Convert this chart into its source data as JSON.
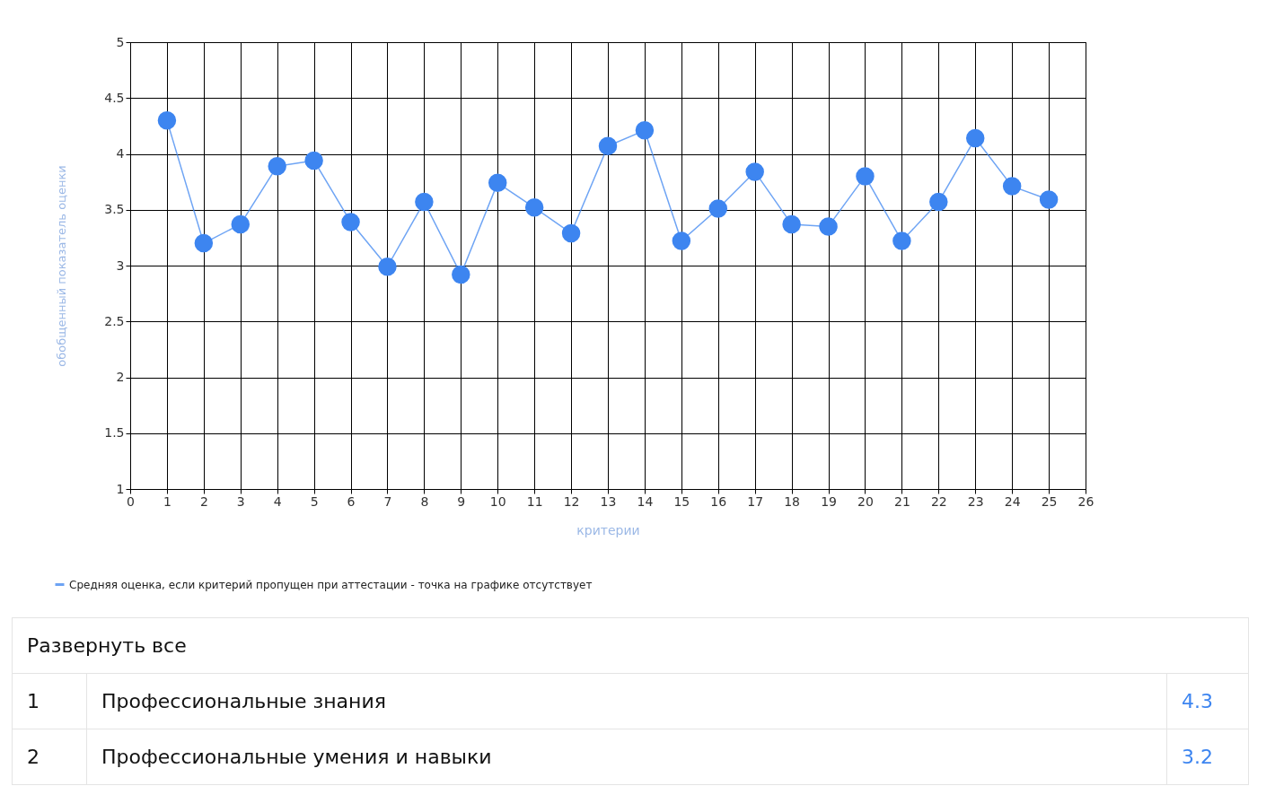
{
  "chart_data": {
    "type": "line",
    "xlabel": "критерии",
    "ylabel": "обобщенный показатель оценки",
    "x": [
      1,
      2,
      3,
      4,
      5,
      6,
      7,
      8,
      9,
      10,
      11,
      12,
      13,
      14,
      15,
      16,
      17,
      18,
      19,
      20,
      21,
      22,
      23,
      24,
      25
    ],
    "series": [
      {
        "name": "Средняя оценка, если критерий пропущен при аттестации - точка на графике отсутствует",
        "color": "#3d85f0",
        "values": [
          4.3,
          3.2,
          3.37,
          3.89,
          3.94,
          3.39,
          2.99,
          3.57,
          2.92,
          3.74,
          3.52,
          3.29,
          4.07,
          4.21,
          3.22,
          3.51,
          3.84,
          3.37,
          3.35,
          3.8,
          3.22,
          3.57,
          4.14,
          3.71,
          3.59
        ]
      }
    ],
    "xlim": [
      0,
      26
    ],
    "xticks": [
      0,
      1,
      2,
      3,
      4,
      5,
      6,
      7,
      8,
      9,
      10,
      11,
      12,
      13,
      14,
      15,
      16,
      17,
      18,
      19,
      20,
      21,
      22,
      23,
      24,
      25,
      26
    ],
    "ylim": [
      1,
      5
    ],
    "yticks": [
      1,
      1.5,
      2,
      2.5,
      3,
      3.5,
      4,
      4.5,
      5
    ],
    "grid": true,
    "legend": "bottom left",
    "marker": "circle",
    "line_style": "solid",
    "annotations": [
      "Развернуть все",
      "1",
      "Профессиональные знания",
      "4.3",
      "2",
      "Профессиональные умения и навыки",
      "3.2"
    ]
  }
}
